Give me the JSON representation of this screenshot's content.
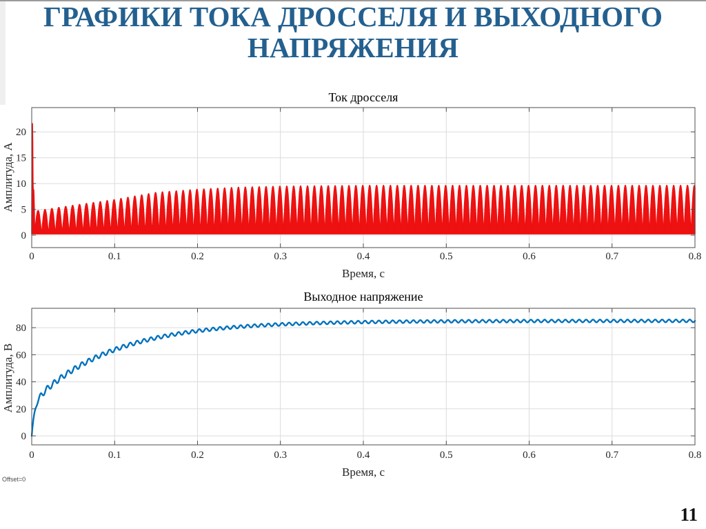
{
  "slide": {
    "title": "ГРАФИКИ ТОКА ДРОССЕЛЯ И ВЫХОДНОГО НАПРЯЖЕНИЯ",
    "title_color": "#24608f",
    "page_number": "11",
    "offset_label": "Offset=0"
  },
  "chart_data": [
    {
      "type": "line",
      "title": "Ток дросселя",
      "xlabel": "Время, с",
      "ylabel": "Амплитуда, А",
      "xlim": [
        0,
        0.8
      ],
      "ylim": [
        -2.4,
        24.7
      ],
      "xticks": [
        0,
        0.1,
        0.2,
        0.3,
        0.4,
        0.5,
        0.6,
        0.7,
        0.8
      ],
      "xtick_labels": [
        "0",
        "0.1",
        "0.2",
        "0.3",
        "0.4",
        "0.5",
        "0.6",
        "0.7",
        "0.8"
      ],
      "yticks": [
        0,
        5,
        10,
        15,
        20
      ],
      "ytick_labels": [
        "0",
        "5",
        "10",
        "15",
        "20"
      ],
      "grid": true,
      "legend": null,
      "line_color": "#ee1111",
      "fill": true,
      "series": {
        "name": "inductor-current",
        "kind": "rectified_sine",
        "period_s": 0.008333,
        "hump_start_s": 0.0035,
        "min_level": 0.25,
        "envelope_points": [
          [
            0,
            4.6
          ],
          [
            0.05,
            5.8
          ],
          [
            0.1,
            6.9
          ],
          [
            0.15,
            8.3
          ],
          [
            0.2,
            8.9
          ],
          [
            0.25,
            9.3
          ],
          [
            0.3,
            9.5
          ],
          [
            0.4,
            9.65
          ],
          [
            0.8,
            9.65
          ]
        ],
        "startup_spike_points": [
          [
            0,
            2.0
          ],
          [
            0.0004,
            21.6
          ],
          [
            0.0011,
            21.6
          ],
          [
            0.0016,
            8.8
          ],
          [
            0.0026,
            8.8
          ],
          [
            0.0033,
            4.2
          ],
          [
            0.0035,
            0.3
          ]
        ],
        "steady_peak_value": 9.65,
        "startup_peak_value": 21.6
      }
    },
    {
      "type": "line",
      "title": "Выходное напряжение",
      "xlabel": "Время, с",
      "ylabel": "Амплитуда, В",
      "xlim": [
        0,
        0.8
      ],
      "ylim": [
        -6.6,
        94.3
      ],
      "xticks": [
        0,
        0.1,
        0.2,
        0.3,
        0.4,
        0.5,
        0.6,
        0.7,
        0.8
      ],
      "xtick_labels": [
        "0",
        "0.1",
        "0.2",
        "0.3",
        "0.4",
        "0.5",
        "0.6",
        "0.7",
        "0.8"
      ],
      "yticks": [
        0,
        20,
        40,
        60,
        80
      ],
      "ytick_labels": [
        "0",
        "20",
        "40",
        "60",
        "80"
      ],
      "grid": true,
      "legend": null,
      "line_color": "#0072bd",
      "fill": false,
      "series": {
        "name": "output-voltage",
        "kind": "exp_rise_with_ripple",
        "components": [
          {
            "amplitude": 24,
            "tau_s": 0.0035
          },
          {
            "amplitude": 61,
            "tau_s": 0.095
          }
        ],
        "steady_value": 85,
        "ripple": {
          "period_s": 0.008333,
          "base_amplitude": 1.0,
          "extra_amplitude": 1.4,
          "decay_tau_s": 0.1,
          "rampin_s": 0.012
        },
        "checkpoints": [
          [
            0.1,
            64
          ],
          [
            0.2,
            78
          ],
          [
            0.3,
            83
          ],
          [
            0.8,
            85
          ]
        ]
      }
    }
  ],
  "chart_style": {
    "grid_color": "#dbdbdb",
    "box_color": "#4d4d4d",
    "text_color": "#262626"
  }
}
